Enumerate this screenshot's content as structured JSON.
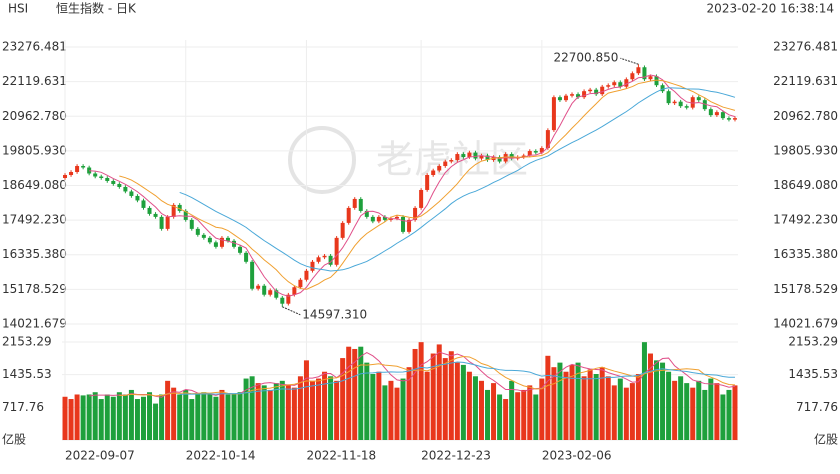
{
  "header": {
    "symbol": "HSI",
    "name": "恒生指数 - 日K",
    "timestamp": "2023-02-20 16:38:14",
    "watermark": "老虎社区"
  },
  "chart_data": {
    "type": "candlestick",
    "categories": [
      "2022-09-07",
      null,
      null,
      null,
      null,
      null,
      null,
      null,
      null,
      null,
      null,
      null,
      null,
      null,
      null,
      null,
      null,
      null,
      null,
      null,
      "2022-10-14",
      null,
      null,
      null,
      null,
      null,
      null,
      null,
      null,
      null,
      null,
      null,
      null,
      null,
      null,
      null,
      null,
      null,
      null,
      null,
      "2022-11-18",
      null,
      null,
      null,
      null,
      null,
      null,
      null,
      null,
      null,
      null,
      null,
      null,
      null,
      null,
      null,
      null,
      null,
      null,
      "2022-12-23",
      null,
      null,
      null,
      null,
      null,
      null,
      null,
      null,
      null,
      null,
      null,
      null,
      null,
      null,
      null,
      null,
      null,
      null,
      null,
      "2023-02-06",
      null,
      null,
      null,
      null,
      null,
      null,
      null,
      null,
      null,
      null,
      null,
      null,
      null,
      null,
      null,
      null,
      null,
      null,
      null,
      null,
      null,
      null,
      null,
      null,
      null,
      null,
      null,
      null,
      null,
      null,
      null,
      null
    ],
    "open": [
      18900,
      19000,
      19100,
      19300,
      19250,
      19050,
      18950,
      18900,
      18800,
      18700,
      18600,
      18450,
      18300,
      18150,
      17900,
      17700,
      17600,
      17200,
      17600,
      18000,
      17800,
      17500,
      17200,
      17000,
      16900,
      16750,
      16600,
      16900,
      16800,
      16600,
      16400,
      16100,
      15200,
      15300,
      15000,
      15150,
      14900,
      14700,
      15000,
      15250,
      15500,
      15800,
      16100,
      16250,
      16300,
      16000,
      16900,
      17400,
      17900,
      18200,
      17800,
      17600,
      17450,
      17600,
      17500,
      17550,
      17600,
      17100,
      17500,
      17900,
      18500,
      19000,
      19150,
      19300,
      19450,
      19500,
      19700,
      19600,
      19750,
      19550,
      19650,
      19500,
      19600,
      19450,
      19700,
      19550,
      19600,
      19650,
      19800,
      19750,
      19900,
      20500,
      21600,
      21500,
      21650,
      21700,
      21600,
      21800,
      21850,
      21700,
      21950,
      22000,
      22100,
      21950,
      22200,
      22400,
      22600,
      22200,
      22300,
      22000,
      21800,
      21400,
      21450,
      21300,
      21250,
      21600,
      21500,
      21200,
      21000,
      21100,
      20900,
      20850
    ],
    "high": [
      19060,
      19160,
      19360,
      19360,
      19310,
      19110,
      19010,
      18960,
      18860,
      18760,
      18660,
      18510,
      18360,
      18210,
      17960,
      17760,
      17660,
      17660,
      18060,
      18060,
      17860,
      17560,
      17260,
      17060,
      16960,
      16810,
      16960,
      16960,
      16860,
      16660,
      16460,
      16160,
      15360,
      15360,
      15210,
      15210,
      14960,
      15060,
      15310,
      15560,
      15860,
      16160,
      16310,
      16360,
      16360,
      16960,
      17460,
      17960,
      18260,
      18260,
      17860,
      17660,
      17660,
      17660,
      17610,
      17660,
      17660,
      17560,
      17960,
      18560,
      19060,
      19210,
      19360,
      19510,
      19560,
      19760,
      19760,
      19810,
      19810,
      19710,
      19710,
      19660,
      19660,
      19760,
      19760,
      19660,
      19710,
      19860,
      19860,
      19960,
      20560,
      21660,
      21660,
      21710,
      21760,
      21760,
      21860,
      21910,
      21910,
      22010,
      22060,
      22160,
      22160,
      22260,
      22460,
      22700.85,
      22660,
      22360,
      22360,
      22060,
      21860,
      21510,
      21510,
      21360,
      21660,
      21660,
      21560,
      21260,
      21160,
      21160,
      20960,
      20960
    ],
    "low": [
      18840,
      18940,
      19040,
      19190,
      18990,
      18890,
      18840,
      18740,
      18640,
      18540,
      18390,
      18240,
      18090,
      17840,
      17640,
      17540,
      17140,
      17140,
      17540,
      17740,
      17440,
      17140,
      16940,
      16840,
      16690,
      16540,
      16540,
      16740,
      16540,
      16340,
      16040,
      15140,
      15140,
      14940,
      14940,
      14840,
      14597.31,
      14640,
      14940,
      15190,
      15440,
      15740,
      16040,
      16190,
      15940,
      15940,
      16840,
      17340,
      17840,
      17740,
      17540,
      17390,
      17390,
      17440,
      17440,
      17490,
      17040,
      17040,
      17440,
      17840,
      18440,
      18940,
      19090,
      19240,
      19390,
      19440,
      19540,
      19540,
      19490,
      19490,
      19440,
      19440,
      19390,
      19390,
      19490,
      19490,
      19540,
      19590,
      19690,
      19690,
      19840,
      20440,
      21440,
      21440,
      21590,
      21540,
      21540,
      21740,
      21640,
      21640,
      21890,
      21940,
      21890,
      21890,
      22140,
      22340,
      22140,
      22140,
      21940,
      21740,
      21340,
      21340,
      21240,
      21190,
      21190,
      21440,
      21140,
      20940,
      20940,
      20840,
      20790,
      20790
    ],
    "close": [
      19000,
      19100,
      19300,
      19250,
      19050,
      18950,
      18900,
      18800,
      18700,
      18600,
      18450,
      18300,
      18150,
      17900,
      17700,
      17600,
      17200,
      17600,
      18000,
      17800,
      17500,
      17200,
      17000,
      16900,
      16750,
      16600,
      16900,
      16800,
      16600,
      16400,
      16100,
      15200,
      15300,
      15000,
      15150,
      14900,
      14700,
      15000,
      15250,
      15500,
      15800,
      16100,
      16250,
      16300,
      16000,
      16900,
      17400,
      17900,
      18200,
      17800,
      17600,
      17450,
      17600,
      17500,
      17550,
      17600,
      17100,
      17500,
      17900,
      18500,
      19000,
      19150,
      19300,
      19450,
      19500,
      19700,
      19600,
      19750,
      19550,
      19650,
      19500,
      19600,
      19450,
      19700,
      19550,
      19600,
      19650,
      19800,
      19750,
      19900,
      20500,
      21600,
      21500,
      21650,
      21700,
      21600,
      21800,
      21850,
      21700,
      21950,
      22000,
      22100,
      21950,
      22200,
      22400,
      22600,
      22200,
      22300,
      22000,
      21800,
      21400,
      21450,
      21300,
      21250,
      21600,
      21500,
      21200,
      21000,
      21100,
      20900,
      20850,
      20900
    ],
    "volume": [
      950,
      900,
      1000,
      980,
      1000,
      1050,
      900,
      1000,
      950,
      1050,
      1000,
      1100,
      900,
      950,
      1050,
      800,
      1000,
      1300,
      1150,
      1000,
      1100,
      900,
      1000,
      1050,
      1000,
      950,
      1100,
      1000,
      1000,
      1050,
      1350,
      1400,
      1250,
      1200,
      1100,
      1250,
      1300,
      1200,
      1150,
      1400,
      1750,
      1300,
      1350,
      1500,
      1400,
      1300,
      1800,
      2050,
      2000,
      2050,
      1700,
      1450,
      1500,
      1200,
      1300,
      1150,
      1350,
      1600,
      2000,
      2150,
      1500,
      1900,
      2100,
      1800,
      1950,
      1700,
      1650,
      1500,
      1400,
      1300,
      1100,
      1250,
      1000,
      900,
      1300,
      1050,
      1100,
      1200,
      1000,
      1350,
      1850,
      1600,
      1700,
      1500,
      1650,
      1700,
      1400,
      1550,
      1450,
      1600,
      1400,
      1200,
      1350,
      1150,
      1250,
      1450,
      2150,
      1900,
      1750,
      1700,
      1500,
      1300,
      1400,
      1250,
      1150,
      1300,
      1100,
      1350,
      1250,
      1000,
      1100,
      1200
    ],
    "up_color": "#e8371c",
    "down_color": "#1ea03c",
    "ylim": [
      14021.679,
      23276.481
    ],
    "yticks": [
      14021.679,
      15178.529,
      {
        "value": 16335.38,
        "label": "16335.380"
      },
      {
        "value": 17492.23,
        "label": "17492.230"
      },
      {
        "value": 18649.08,
        "label": "18649.080"
      },
      {
        "value": 19805.93,
        "label": "19805.930"
      },
      {
        "value": 20962.78,
        "label": "20962.780"
      },
      22119.631,
      23276.481
    ],
    "volume_ylim": [
      0,
      2153.29
    ],
    "volume_yticks": [
      {
        "value": 0,
        "label": "亿股"
      },
      717.76,
      1435.53,
      2153.29
    ],
    "annotations": [
      {
        "index": 95,
        "value": 22700.85,
        "label": "22700.850"
      },
      {
        "index": 36,
        "value": 14597.31,
        "label": "14597.310"
      }
    ]
  }
}
